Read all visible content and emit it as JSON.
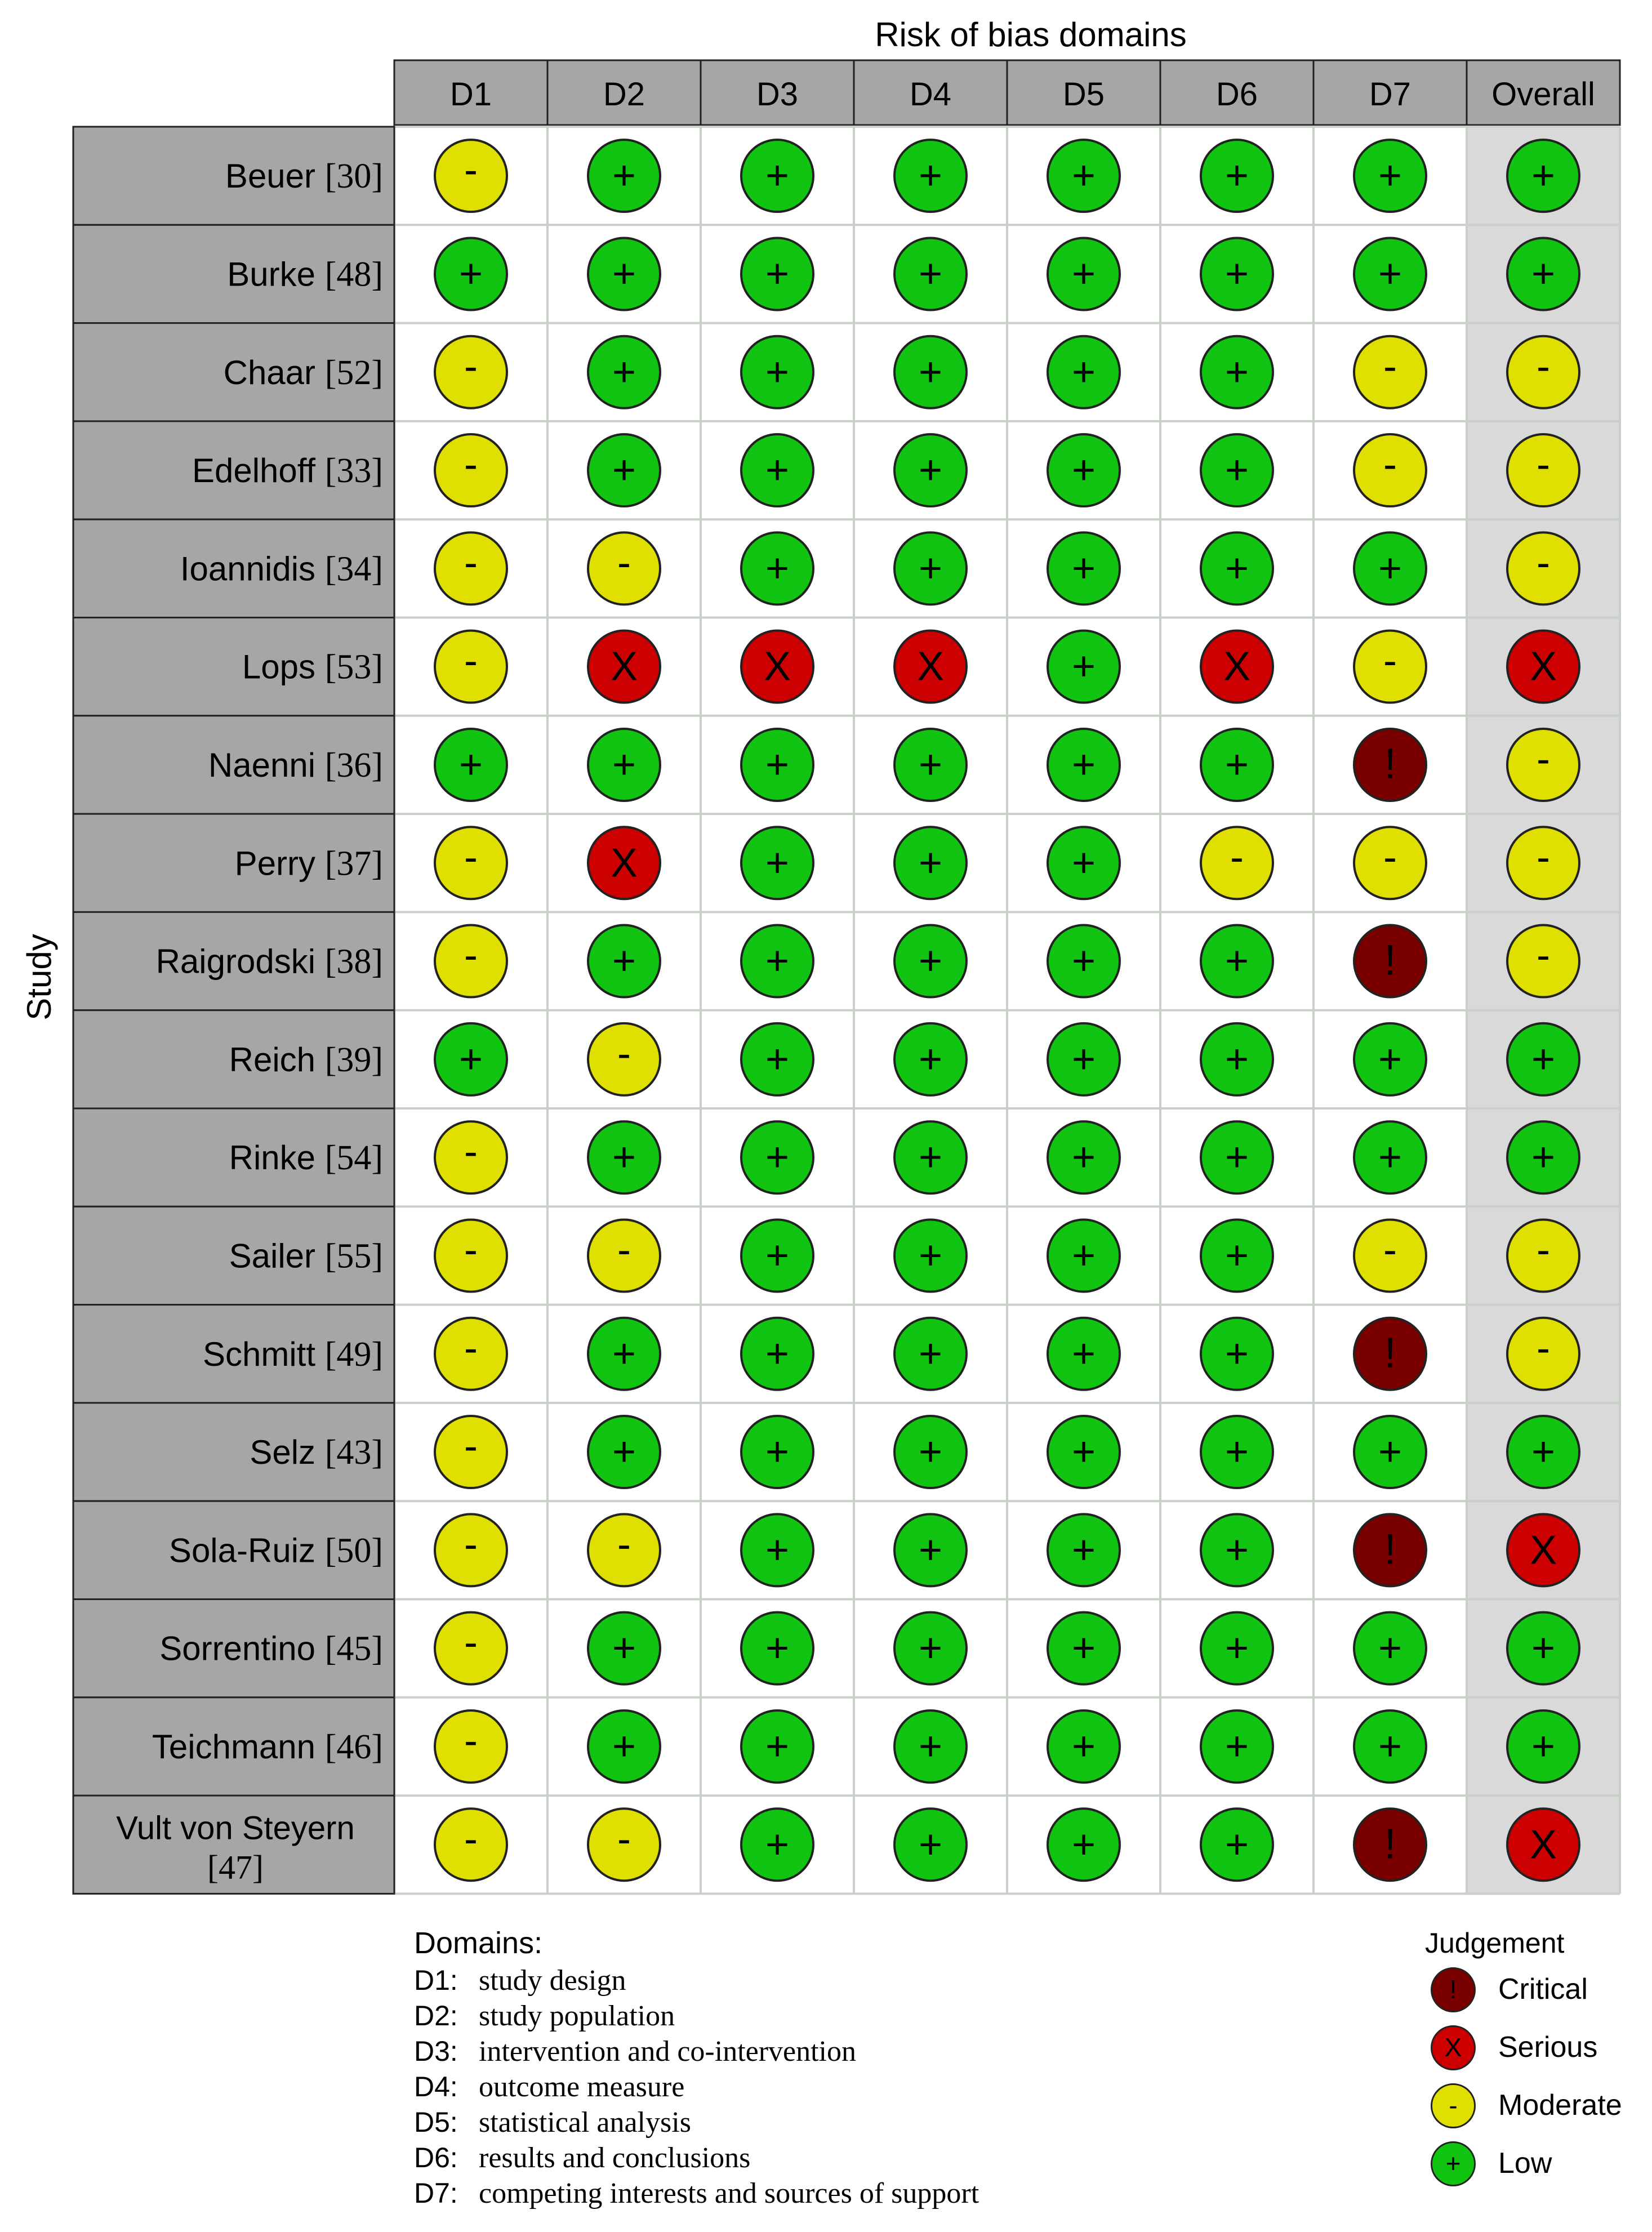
{
  "chart_data": {
    "type": "table",
    "title": "Risk of bias domains",
    "ylabel": "Study",
    "columns": [
      "D1",
      "D2",
      "D3",
      "D4",
      "D5",
      "D6",
      "D7",
      "Overall"
    ],
    "rows": [
      {
        "study": "Beuer",
        "ref": "[30]",
        "judgements": [
          "Moderate",
          "Low",
          "Low",
          "Low",
          "Low",
          "Low",
          "Low",
          "Low"
        ]
      },
      {
        "study": "Burke",
        "ref": "[48]",
        "judgements": [
          "Low",
          "Low",
          "Low",
          "Low",
          "Low",
          "Low",
          "Low",
          "Low"
        ]
      },
      {
        "study": "Chaar",
        "ref": "[52]",
        "judgements": [
          "Moderate",
          "Low",
          "Low",
          "Low",
          "Low",
          "Low",
          "Moderate",
          "Moderate"
        ]
      },
      {
        "study": "Edelhoff",
        "ref": "[33]",
        "judgements": [
          "Moderate",
          "Low",
          "Low",
          "Low",
          "Low",
          "Low",
          "Moderate",
          "Moderate"
        ]
      },
      {
        "study": "Ioannidis",
        "ref": "[34]",
        "judgements": [
          "Moderate",
          "Moderate",
          "Low",
          "Low",
          "Low",
          "Low",
          "Low",
          "Moderate"
        ]
      },
      {
        "study": "Lops",
        "ref": "[53]",
        "judgements": [
          "Moderate",
          "Serious",
          "Serious",
          "Serious",
          "Low",
          "Serious",
          "Moderate",
          "Serious"
        ]
      },
      {
        "study": "Naenni",
        "ref": "[36]",
        "judgements": [
          "Low",
          "Low",
          "Low",
          "Low",
          "Low",
          "Low",
          "Critical",
          "Moderate"
        ]
      },
      {
        "study": "Perry",
        "ref": "[37]",
        "judgements": [
          "Moderate",
          "Serious",
          "Low",
          "Low",
          "Low",
          "Moderate",
          "Moderate",
          "Moderate"
        ]
      },
      {
        "study": "Raigrodski",
        "ref": "[38]",
        "judgements": [
          "Moderate",
          "Low",
          "Low",
          "Low",
          "Low",
          "Low",
          "Critical",
          "Moderate"
        ]
      },
      {
        "study": "Reich",
        "ref": "[39]",
        "judgements": [
          "Low",
          "Moderate",
          "Low",
          "Low",
          "Low",
          "Low",
          "Low",
          "Low"
        ]
      },
      {
        "study": "Rinke",
        "ref": "[54]",
        "judgements": [
          "Moderate",
          "Low",
          "Low",
          "Low",
          "Low",
          "Low",
          "Low",
          "Low"
        ]
      },
      {
        "study": "Sailer",
        "ref": "[55]",
        "judgements": [
          "Moderate",
          "Moderate",
          "Low",
          "Low",
          "Low",
          "Low",
          "Moderate",
          "Moderate"
        ]
      },
      {
        "study": "Schmitt",
        "ref": "[49]",
        "judgements": [
          "Moderate",
          "Low",
          "Low",
          "Low",
          "Low",
          "Low",
          "Critical",
          "Moderate"
        ]
      },
      {
        "study": "Selz",
        "ref": "[43]",
        "judgements": [
          "Moderate",
          "Low",
          "Low",
          "Low",
          "Low",
          "Low",
          "Low",
          "Low"
        ]
      },
      {
        "study": "Sola-Ruiz",
        "ref": "[50]",
        "judgements": [
          "Moderate",
          "Moderate",
          "Low",
          "Low",
          "Low",
          "Low",
          "Critical",
          "Serious"
        ]
      },
      {
        "study": "Sorrentino",
        "ref": "[45]",
        "judgements": [
          "Moderate",
          "Low",
          "Low",
          "Low",
          "Low",
          "Low",
          "Low",
          "Low"
        ]
      },
      {
        "study": "Teichmann",
        "ref": "[46]",
        "judgements": [
          "Moderate",
          "Low",
          "Low",
          "Low",
          "Low",
          "Low",
          "Low",
          "Low"
        ]
      },
      {
        "study": "Vult von Steyern",
        "ref": "[47]",
        "judgements": [
          "Moderate",
          "Moderate",
          "Low",
          "Low",
          "Low",
          "Low",
          "Critical",
          "Serious"
        ]
      }
    ],
    "judgement_levels": [
      {
        "name": "Critical",
        "symbol": "!",
        "color": "#7a0000"
      },
      {
        "name": "Serious",
        "symbol": "X",
        "color": "#cc0000"
      },
      {
        "name": "Moderate",
        "symbol": "-",
        "color": "#e0e000"
      },
      {
        "name": "Low",
        "symbol": "+",
        "color": "#11c411"
      }
    ],
    "domains_legend": {
      "heading": "Domains:",
      "items": [
        {
          "code": "D1:",
          "description": "study design"
        },
        {
          "code": "D2:",
          "description": "study population"
        },
        {
          "code": "D3:",
          "description": "intervention and co-intervention"
        },
        {
          "code": "D4:",
          "description": "outcome measure"
        },
        {
          "code": "D5:",
          "description": "statistical analysis"
        },
        {
          "code": "D6:",
          "description": "results and conclusions"
        },
        {
          "code": "D7:",
          "description": "competing interests and sources of support"
        }
      ]
    },
    "judgement_legend_heading": "Judgement"
  },
  "colors": {
    "header_fill": "#a6a6a6",
    "study_fill": "#a6a6a6",
    "overall_fill": "#d9d9d9",
    "grid_line": "#c8d0c8",
    "outline": "#222222"
  }
}
